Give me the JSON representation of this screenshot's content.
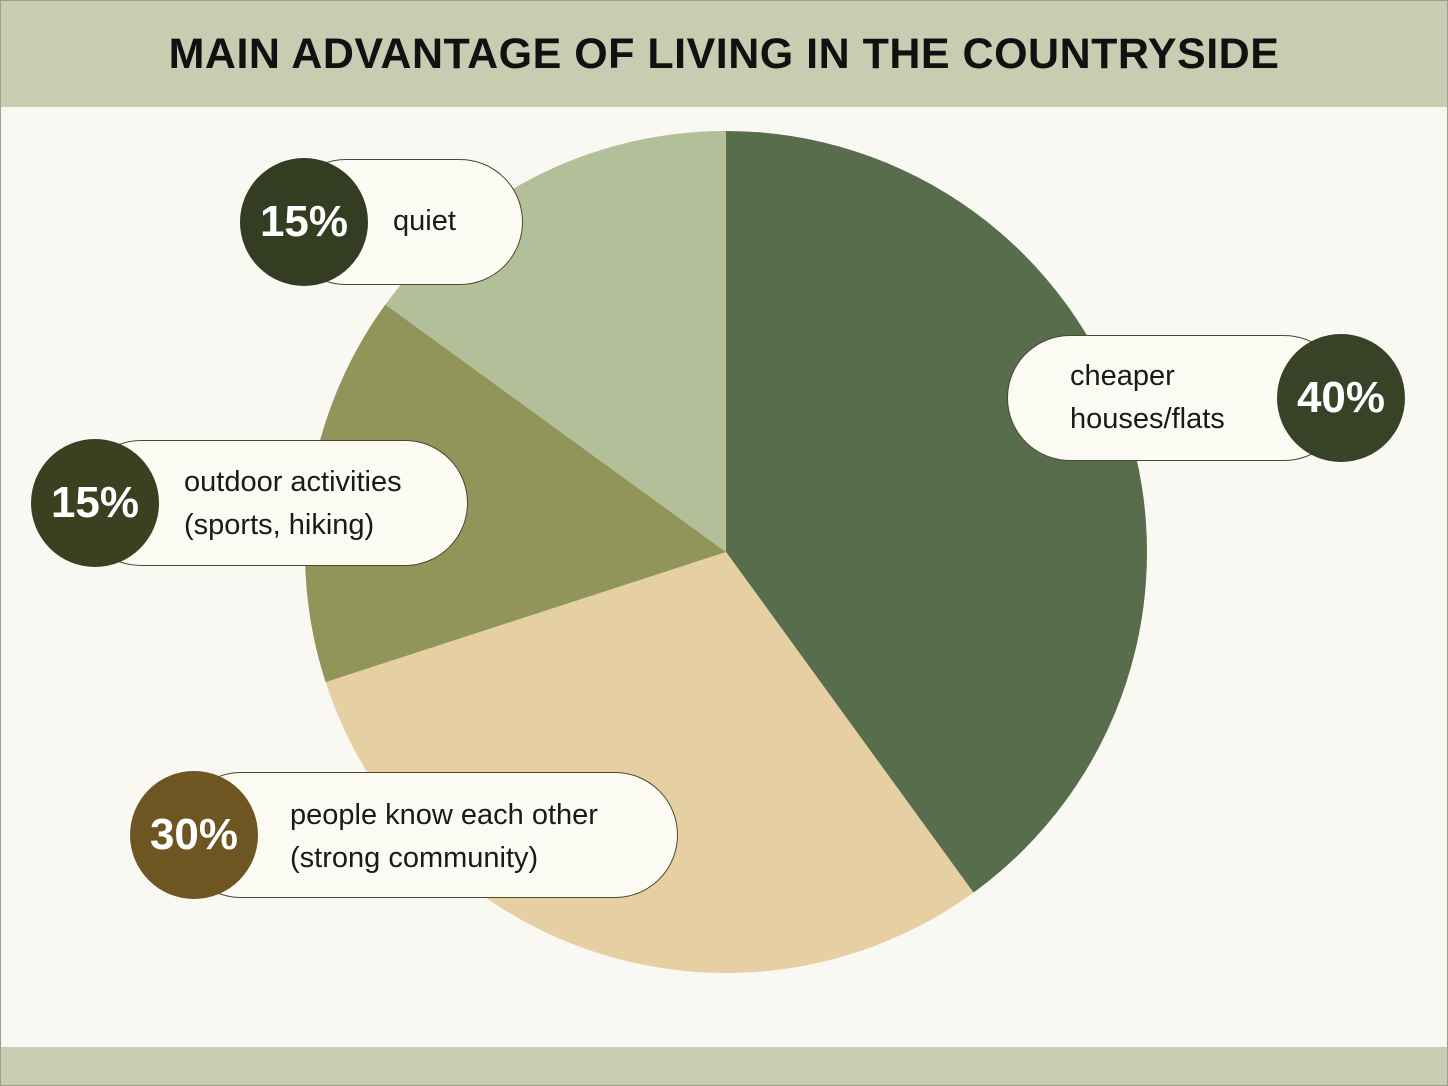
{
  "chart_data": {
    "type": "pie",
    "title": "MAIN ADVANTAGE OF LIVING IN THE COUNTRYSIDE",
    "slices": [
      {
        "label_lines": [
          "cheaper",
          "houses/flats"
        ],
        "value": 40,
        "value_label": "40%",
        "color": "#576d4c",
        "badge_color": "#374226"
      },
      {
        "label_lines": [
          "people know each other",
          "(strong community)"
        ],
        "value": 30,
        "value_label": "30%",
        "color": "#e6cfa3",
        "badge_color": "#6e5622"
      },
      {
        "label_lines": [
          "outdoor activities",
          "(sports, hiking)"
        ],
        "value": 15,
        "value_label": "15%",
        "color": "#919559",
        "badge_color": "#3c4020"
      },
      {
        "label_lines": [
          "quiet"
        ],
        "value": 15,
        "value_label": "15%",
        "color": "#b2bf98",
        "badge_color": "#343d22"
      }
    ]
  },
  "colors": {
    "header_band": "#c8cdb1",
    "background": "#faf8f2"
  }
}
